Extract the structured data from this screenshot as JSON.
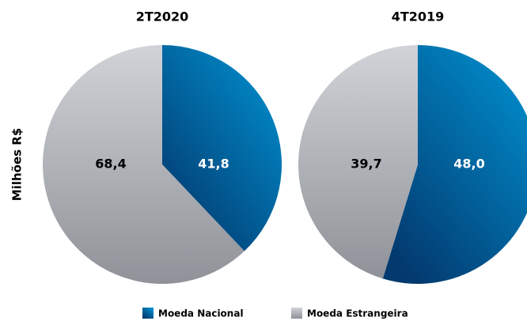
{
  "chart_data": [
    {
      "type": "pie",
      "title": "2T2020",
      "values": [
        41.8,
        68.4
      ],
      "value_labels": [
        "41,8",
        "68,4"
      ]
    },
    {
      "type": "pie",
      "title": "4T2019",
      "values": [
        48.0,
        39.7
      ],
      "value_labels": [
        "48,0",
        "39,7"
      ]
    }
  ],
  "axis_label": "Milhões R$",
  "legend": {
    "names": [
      "Moeda Nacional",
      "Moeda Estrangeira"
    ],
    "colors": [
      "#0a6aa8",
      "#b4b8be"
    ]
  }
}
